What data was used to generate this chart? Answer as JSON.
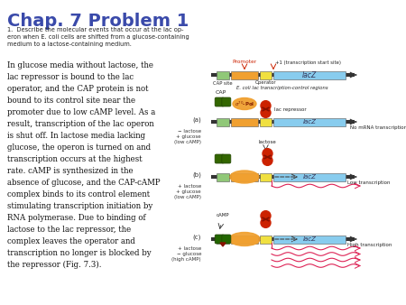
{
  "title": "Chap. 7 Problem 1",
  "title_color": "#3a4aaa",
  "title_fontsize": 14,
  "question_text": "1.  Describe the molecular events that occur at the lac op-\neron when E. coli cells are shifted from a glucose-containing\nmedium to a lactose-containing medium.",
  "bg_color": "#ffffff",
  "colors": {
    "cap_site": "#90c878",
    "promoter": "#f0a030",
    "operator": "#f0e040",
    "lacz": "#88ccee",
    "repressor": "#cc2200",
    "cap_protein_dark": "#336600",
    "sigma_pol": "#f0a030",
    "mRNA": "#dd2255",
    "line": "#333333",
    "promoter_label": "#cc2200"
  },
  "body_lines": [
    "In glucose media without lactose, the",
    "lac repressor is bound to the lac",
    "operator, and the CAP protein is not",
    "bound to its control site near the",
    "promoter due to low cAMP level. As a",
    "result, transcription of the lac operon",
    "is shut off. In lactose media lacking",
    "glucose, the operon is turned on and",
    "transcription occurs at the highest",
    "rate. cAMP is synthesized in the",
    "absence of glucose, and the CAP-cAMP",
    "complex binds to its control element",
    "stimulating transcription initiation by",
    "RNA polymerase. Due to binding of",
    "lactose to the lac repressor, the",
    "complex leaves the operator and",
    "transcription no longer is blocked by",
    "the repressor (Fig. 7.3)."
  ]
}
